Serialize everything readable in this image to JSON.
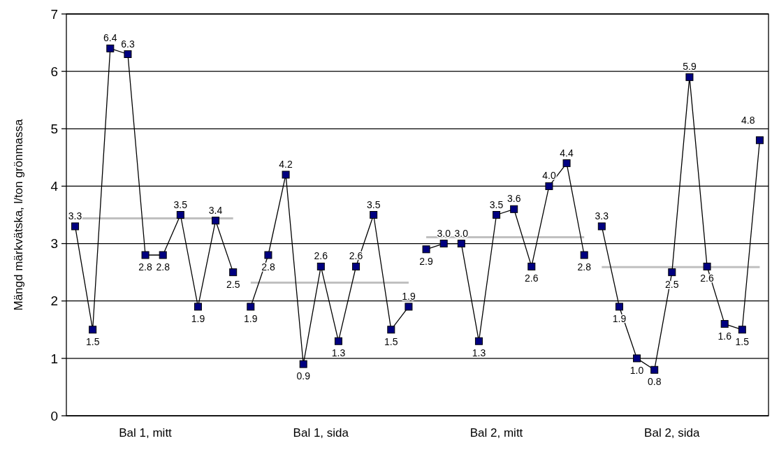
{
  "chart_data": {
    "type": "line",
    "ylabel": "Mängd märkvätska, l/ton grönmassa",
    "ylim": [
      0,
      7
    ],
    "yticks": [
      0,
      1,
      2,
      3,
      4,
      5,
      6,
      7
    ],
    "categories": [
      null,
      null,
      null,
      null,
      "Bal 1, mitt",
      null,
      null,
      null,
      null,
      null,
      null,
      null,
      null,
      null,
      "Bal 1, sida",
      null,
      null,
      null,
      null,
      null,
      null,
      null,
      null,
      null,
      "Bal 2, mitt",
      null,
      null,
      null,
      null,
      null,
      null,
      null,
      null,
      null,
      "Bal 2, sida",
      null,
      null,
      null,
      null,
      null
    ],
    "grid": "y",
    "series": [
      {
        "color": "#000080",
        "marker": "square",
        "values": [
          3.3,
          1.5,
          6.4,
          6.3,
          2.8,
          2.8,
          3.5,
          1.9,
          3.4,
          2.5,
          null,
          null,
          null,
          null,
          null,
          null,
          null,
          null,
          null,
          null,
          null,
          null,
          null,
          null,
          null,
          null,
          null,
          null,
          null,
          null,
          null,
          null,
          null,
          null,
          null,
          null,
          null,
          null,
          null,
          null
        ],
        "value_labels": [
          "3.3",
          "1.5",
          "6.4",
          "6.3",
          "2.8",
          "2.8",
          "3.5",
          "1.9",
          "3.4",
          "2.5",
          null,
          null,
          null,
          null,
          null,
          null,
          null,
          null,
          null,
          null,
          null,
          null,
          null,
          null,
          null,
          null,
          null,
          null,
          null,
          null,
          null,
          null,
          null,
          null,
          null,
          null,
          null,
          null,
          null,
          null
        ]
      },
      {
        "color": "#000080",
        "marker": "square",
        "values": [
          null,
          null,
          null,
          null,
          null,
          null,
          null,
          null,
          null,
          null,
          1.9,
          2.8,
          4.2,
          0.9,
          2.6,
          1.3,
          2.6,
          3.5,
          1.5,
          1.9,
          null,
          null,
          null,
          null,
          null,
          null,
          null,
          null,
          null,
          null,
          null,
          null,
          null,
          null,
          null,
          null,
          null,
          null,
          null,
          null
        ],
        "value_labels": [
          null,
          null,
          null,
          null,
          null,
          null,
          null,
          null,
          null,
          null,
          "1.9",
          "2.8",
          "4.2",
          "0.9",
          "2.6",
          "1.3",
          "2.6",
          "3.5",
          "1.5",
          "1.9",
          null,
          null,
          null,
          null,
          null,
          null,
          null,
          null,
          null,
          null,
          null,
          null,
          null,
          null,
          null,
          null,
          null,
          null,
          null,
          null
        ]
      },
      {
        "color": "#000080",
        "marker": "square",
        "values": [
          null,
          null,
          null,
          null,
          null,
          null,
          null,
          null,
          null,
          null,
          null,
          null,
          null,
          null,
          null,
          null,
          null,
          null,
          null,
          null,
          2.9,
          3.0,
          3.0,
          1.3,
          3.5,
          3.6,
          2.6,
          4.0,
          4.4,
          2.8,
          null,
          null,
          null,
          null,
          null,
          null,
          null,
          null,
          null,
          null
        ],
        "value_labels": [
          null,
          null,
          null,
          null,
          null,
          null,
          null,
          null,
          null,
          null,
          null,
          null,
          null,
          null,
          null,
          null,
          null,
          null,
          null,
          null,
          "2.9",
          "3.0",
          "3.0",
          "1.3",
          "3.5",
          "3.6",
          "2.6",
          "4.0",
          "4.4",
          "2.8",
          null,
          null,
          null,
          null,
          null,
          null,
          null,
          null,
          null,
          null
        ]
      },
      {
        "color": "#000080",
        "marker": "square",
        "values": [
          null,
          null,
          null,
          null,
          null,
          null,
          null,
          null,
          null,
          null,
          null,
          null,
          null,
          null,
          null,
          null,
          null,
          null,
          null,
          null,
          null,
          null,
          null,
          null,
          null,
          null,
          null,
          null,
          null,
          null,
          3.3,
          1.9,
          1.0,
          0.8,
          2.5,
          5.9,
          2.6,
          1.6,
          1.5,
          4.8
        ],
        "value_labels": [
          null,
          null,
          null,
          null,
          null,
          null,
          null,
          null,
          null,
          null,
          null,
          null,
          null,
          null,
          null,
          null,
          null,
          null,
          null,
          null,
          null,
          null,
          null,
          null,
          null,
          null,
          null,
          null,
          null,
          null,
          "3.3",
          "1.9",
          "1.0",
          "0.8",
          "2.5",
          "5.9",
          "2.6",
          "1.6",
          "1.5",
          "4.8"
        ]
      },
      {
        "color": "#c0c0c0",
        "marker": "none",
        "values": [
          3.44,
          null,
          null,
          null,
          null,
          null,
          null,
          null,
          null,
          3.44,
          null,
          null,
          null,
          null,
          null,
          null,
          null,
          null,
          null,
          null,
          null,
          null,
          null,
          null,
          null,
          null,
          null,
          null,
          null,
          null,
          null,
          null,
          null,
          null,
          null,
          null,
          null,
          null,
          null,
          null
        ]
      },
      {
        "color": "#c0c0c0",
        "marker": "none",
        "values": [
          null,
          null,
          null,
          null,
          null,
          null,
          null,
          null,
          null,
          null,
          2.32,
          null,
          null,
          null,
          null,
          null,
          null,
          null,
          null,
          2.32,
          null,
          null,
          null,
          null,
          null,
          null,
          null,
          null,
          null,
          null,
          null,
          null,
          null,
          null,
          null,
          null,
          null,
          null,
          null,
          null
        ]
      },
      {
        "color": "#c0c0c0",
        "marker": "none",
        "values": [
          null,
          null,
          null,
          null,
          null,
          null,
          null,
          null,
          null,
          null,
          null,
          null,
          null,
          null,
          null,
          null,
          null,
          null,
          null,
          null,
          3.11,
          null,
          null,
          null,
          null,
          null,
          null,
          null,
          null,
          3.11,
          null,
          null,
          null,
          null,
          null,
          null,
          null,
          null,
          null,
          null
        ]
      },
      {
        "color": "#c0c0c0",
        "marker": "none",
        "values": [
          null,
          null,
          null,
          null,
          null,
          null,
          null,
          null,
          null,
          null,
          null,
          null,
          null,
          null,
          null,
          null,
          null,
          null,
          null,
          null,
          null,
          null,
          null,
          null,
          null,
          null,
          null,
          null,
          null,
          null,
          2.59,
          null,
          null,
          null,
          null,
          null,
          null,
          null,
          null,
          2.59
        ]
      }
    ]
  }
}
